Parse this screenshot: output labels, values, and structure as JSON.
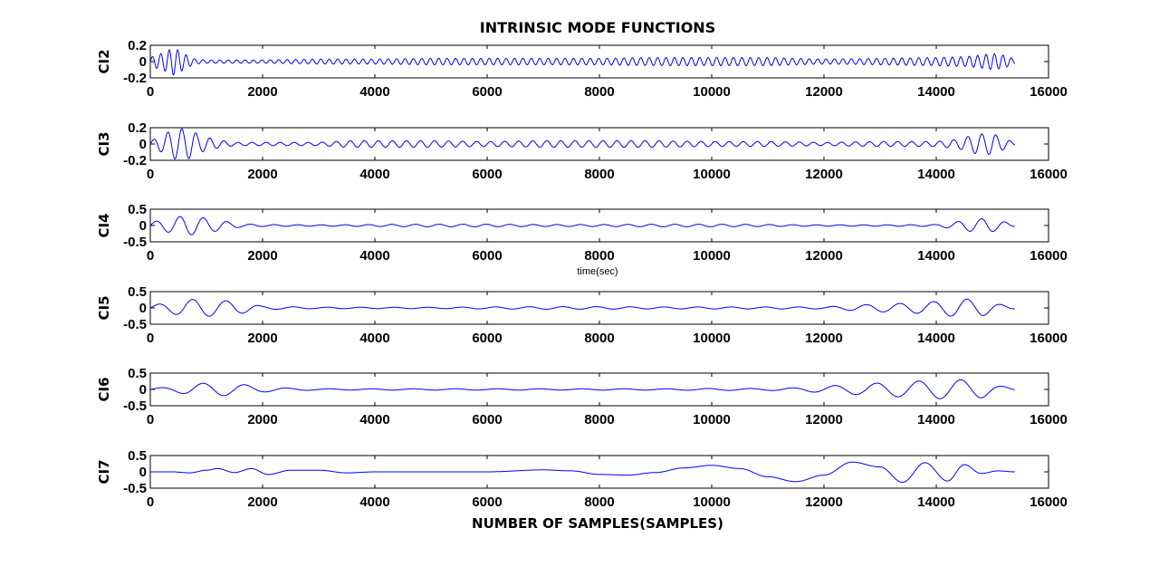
{
  "chart_data": {
    "type": "line",
    "title": "INTRINSIC MODE FUNCTIONS",
    "xlabel": "NUMBER OF SAMPLES(SAMPLES)",
    "annotation": "time(sec)",
    "series_color": "#0000ff",
    "axis_color": "#000000",
    "grid": false,
    "xlim": [
      0,
      16000
    ],
    "xticks": [
      0,
      2000,
      4000,
      6000,
      8000,
      10000,
      12000,
      14000,
      16000
    ],
    "xtick_labels": [
      "0",
      "2000",
      "4000",
      "6000",
      "8000",
      "10000",
      "12000",
      "14000",
      "16000"
    ],
    "subplots": [
      {
        "name": "CI2",
        "ylim": [
          -0.2,
          0.2
        ],
        "yticks": [
          -0.2,
          0,
          0.2
        ],
        "ytick_labels": [
          "-0.2",
          "0",
          "0.2"
        ],
        "x": [
          0,
          100,
          200,
          300,
          400,
          500,
          600,
          700,
          800,
          1000,
          1500,
          2000,
          3000,
          4000,
          5000,
          6000,
          7000,
          8000,
          9000,
          10000,
          11000,
          12000,
          13000,
          14000,
          14500,
          14800,
          15000,
          15200,
          15400
        ],
        "y_amp": [
          0.05,
          0.08,
          0.1,
          0.13,
          0.17,
          0.14,
          0.1,
          0.06,
          0.03,
          0.02,
          0.02,
          0.02,
          0.03,
          0.03,
          0.04,
          0.04,
          0.04,
          0.04,
          0.05,
          0.05,
          0.05,
          0.03,
          0.04,
          0.05,
          0.06,
          0.08,
          0.1,
          0.08,
          0.03
        ],
        "period": 150
      },
      {
        "name": "CI3",
        "ylim": [
          -0.2,
          0.2
        ],
        "yticks": [
          -0.2,
          0,
          0.2
        ],
        "ytick_labels": [
          "-0.2",
          "0",
          "0.2"
        ],
        "x": [
          0,
          200,
          400,
          500,
          700,
          900,
          1200,
          1500,
          2000,
          3000,
          3500,
          4000,
          5000,
          6000,
          7000,
          8000,
          9000,
          10000,
          11000,
          12000,
          13000,
          14000,
          14400,
          14700,
          15000,
          15200,
          15400
        ],
        "y_amp": [
          0.04,
          0.1,
          0.18,
          0.19,
          0.18,
          0.1,
          0.05,
          0.02,
          0.02,
          0.02,
          0.04,
          0.04,
          0.04,
          0.03,
          0.04,
          0.04,
          0.04,
          0.03,
          0.03,
          0.02,
          0.03,
          0.03,
          0.06,
          0.12,
          0.13,
          0.07,
          0.02
        ],
        "period": 250
      },
      {
        "name": "CI4",
        "ylim": [
          -0.5,
          0.5
        ],
        "yticks": [
          -0.5,
          0,
          0.5
        ],
        "ytick_labels": [
          "-0.5",
          "0",
          "0.5"
        ],
        "x": [
          0,
          300,
          600,
          800,
          1000,
          1300,
          1600,
          2000,
          3000,
          4000,
          5000,
          6000,
          7000,
          8000,
          9000,
          10000,
          11000,
          12000,
          13000,
          14000,
          14300,
          14600,
          14900,
          15200,
          15400
        ],
        "y_amp": [
          0.1,
          0.2,
          0.3,
          0.28,
          0.22,
          0.14,
          0.05,
          0.03,
          0.02,
          0.03,
          0.04,
          0.04,
          0.03,
          0.03,
          0.04,
          0.04,
          0.03,
          0.02,
          0.02,
          0.03,
          0.1,
          0.18,
          0.22,
          0.12,
          0.03
        ],
        "period": 420
      },
      {
        "name": "CI5",
        "ylim": [
          -0.5,
          0.5
        ],
        "yticks": [
          -0.5,
          0,
          0.5
        ],
        "ytick_labels": [
          "-0.5",
          "0",
          "0.5"
        ],
        "x": [
          0,
          300,
          600,
          900,
          1200,
          1500,
          1800,
          2000,
          3000,
          4000,
          5000,
          6000,
          7000,
          8000,
          9000,
          10000,
          11000,
          12000,
          12500,
          13000,
          13500,
          14000,
          14400,
          14800,
          15100,
          15400
        ],
        "y_amp": [
          0.08,
          0.15,
          0.25,
          0.27,
          0.24,
          0.2,
          0.12,
          0.05,
          0.02,
          0.02,
          0.02,
          0.03,
          0.04,
          0.04,
          0.03,
          0.03,
          0.03,
          0.03,
          0.08,
          0.12,
          0.15,
          0.2,
          0.28,
          0.25,
          0.12,
          0.03
        ],
        "period": 600
      },
      {
        "name": "CI6",
        "ylim": [
          -0.5,
          0.5
        ],
        "yticks": [
          -0.5,
          0,
          0.5
        ],
        "ytick_labels": [
          "-0.5",
          "0",
          "0.5"
        ],
        "x": [
          0,
          400,
          800,
          1200,
          1600,
          2000,
          2500,
          3000,
          4000,
          5000,
          6000,
          7000,
          8000,
          9000,
          10000,
          11000,
          11500,
          12000,
          12500,
          13000,
          13500,
          14000,
          14400,
          14800,
          15100,
          15400
        ],
        "y_amp": [
          0.03,
          0.08,
          0.18,
          0.2,
          0.16,
          0.08,
          0.04,
          0.02,
          0.02,
          0.02,
          0.02,
          0.02,
          0.02,
          0.02,
          0.03,
          0.03,
          0.05,
          0.1,
          0.15,
          0.2,
          0.24,
          0.28,
          0.3,
          0.26,
          0.12,
          0.03
        ],
        "period": 750
      },
      {
        "name": "CI7",
        "ylim": [
          -0.5,
          0.5
        ],
        "yticks": [
          -0.5,
          0,
          0.5
        ],
        "ytick_labels": [
          "-0.5",
          "0",
          "0.5"
        ],
        "x": [
          0,
          400,
          700,
          1000,
          1200,
          1500,
          1800,
          2100,
          2500,
          3000,
          3500,
          4000,
          5000,
          6000,
          7000,
          7500,
          8000,
          8500,
          9000,
          9500,
          10000,
          10500,
          11000,
          11500,
          12000,
          12500,
          13000,
          13400,
          13800,
          14200,
          14500,
          14800,
          15100,
          15400
        ],
        "y": [
          0.0,
          0.0,
          -0.03,
          0.05,
          0.1,
          -0.02,
          0.1,
          -0.08,
          0.05,
          0.05,
          -0.03,
          0.0,
          0.0,
          0.0,
          0.06,
          0.03,
          -0.08,
          -0.1,
          -0.02,
          0.12,
          0.2,
          0.1,
          -0.15,
          -0.3,
          -0.1,
          0.3,
          0.15,
          -0.32,
          0.28,
          -0.28,
          0.22,
          -0.05,
          0.03,
          0.0
        ]
      }
    ]
  }
}
